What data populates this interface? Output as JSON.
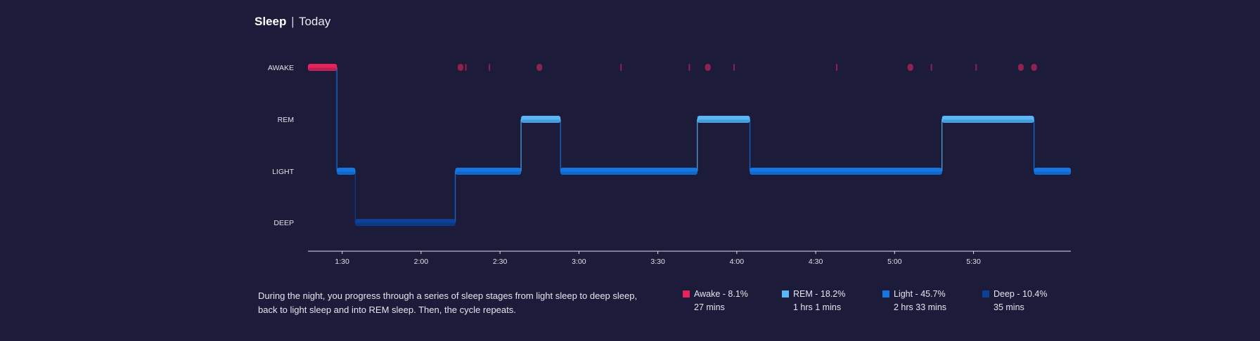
{
  "header": {
    "title": "Sleep",
    "separator": "|",
    "subtitle": "Today"
  },
  "colors": {
    "background": "#1c1b3a",
    "awake": "#e8245f",
    "awake_dim": "#8e2350",
    "rem": "#5ab6f5",
    "light": "#1677e3",
    "deep": "#0d4196",
    "axis": "#e0e0ea"
  },
  "chart_data": {
    "type": "step",
    "title": "",
    "stages": [
      "AWAKE",
      "REM",
      "LIGHT",
      "DEEP"
    ],
    "x_range": [
      "01:17",
      "06:07"
    ],
    "x_ticks": [
      "1:30",
      "2:00",
      "2:30",
      "3:00",
      "3:30",
      "4:00",
      "4:30",
      "5:00",
      "5:30"
    ],
    "segments": [
      {
        "stage": "AWAKE",
        "start": "01:17",
        "end": "01:28"
      },
      {
        "stage": "LIGHT",
        "start": "01:28",
        "end": "01:35"
      },
      {
        "stage": "DEEP",
        "start": "01:35",
        "end": "02:13"
      },
      {
        "stage": "LIGHT",
        "start": "02:13",
        "end": "02:38"
      },
      {
        "stage": "REM",
        "start": "02:38",
        "end": "02:53"
      },
      {
        "stage": "LIGHT",
        "start": "02:53",
        "end": "03:45"
      },
      {
        "stage": "REM",
        "start": "03:45",
        "end": "04:05"
      },
      {
        "stage": "LIGHT",
        "start": "04:05",
        "end": "05:18"
      },
      {
        "stage": "REM",
        "start": "05:18",
        "end": "05:53"
      },
      {
        "stage": "LIGHT",
        "start": "05:53",
        "end": "06:07"
      }
    ],
    "awake_events": [
      {
        "time": "02:15",
        "big": true
      },
      {
        "time": "02:17",
        "big": false
      },
      {
        "time": "02:26",
        "big": false
      },
      {
        "time": "02:45",
        "big": true
      },
      {
        "time": "03:16",
        "big": false
      },
      {
        "time": "03:42",
        "big": false
      },
      {
        "time": "03:49",
        "big": true
      },
      {
        "time": "03:59",
        "big": false
      },
      {
        "time": "04:38",
        "big": false
      },
      {
        "time": "05:06",
        "big": true
      },
      {
        "time": "05:14",
        "big": false
      },
      {
        "time": "05:31",
        "big": false
      },
      {
        "time": "05:48",
        "big": true
      },
      {
        "time": "05:53",
        "big": true
      }
    ]
  },
  "description": "During the night, you progress through a series of sleep stages from light sleep to deep sleep, back to light sleep and into REM sleep. Then, the cycle repeats.",
  "legend": [
    {
      "label": "Awake - 8.1%",
      "duration": "27 mins",
      "color": "#e8245f"
    },
    {
      "label": "REM - 18.2%",
      "duration": "1 hrs 1 mins",
      "color": "#5ab6f5"
    },
    {
      "label": "Light - 45.7%",
      "duration": "2 hrs 33 mins",
      "color": "#1677e3"
    },
    {
      "label": "Deep - 10.4%",
      "duration": "35 mins",
      "color": "#0d4196"
    }
  ]
}
